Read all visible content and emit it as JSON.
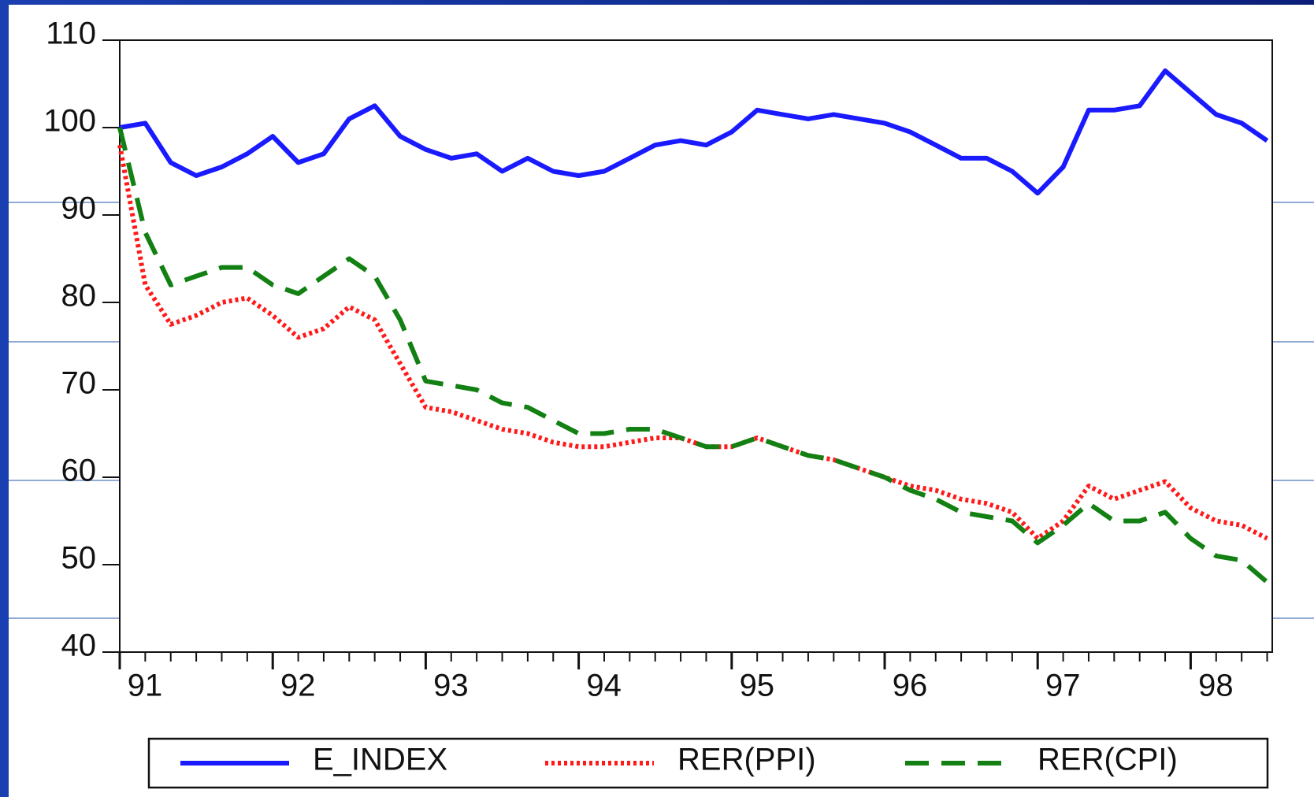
{
  "chart_data": {
    "type": "line",
    "categories": [
      "91",
      null,
      null,
      null,
      null,
      null,
      "92",
      null,
      null,
      null,
      null,
      null,
      "93",
      null,
      null,
      null,
      null,
      null,
      "94",
      null,
      null,
      null,
      null,
      null,
      "95",
      null,
      null,
      null,
      null,
      null,
      "96",
      null,
      null,
      null,
      null,
      null,
      "97",
      null,
      null,
      null,
      null,
      null,
      "98",
      null,
      null,
      null
    ],
    "series": [
      {
        "name": "E_INDEX",
        "color": "#1a1aff",
        "style": "solid",
        "values": [
          100,
          100.5,
          96,
          94.5,
          95.5,
          97,
          99,
          96,
          97,
          101,
          102.5,
          99,
          97.5,
          96.5,
          97,
          95,
          96.5,
          95,
          94.5,
          95,
          96.5,
          98,
          98.5,
          98,
          99.5,
          102,
          101.5,
          101,
          101.5,
          101,
          100.5,
          99.5,
          98,
          96.5,
          96.5,
          95,
          92.5,
          95.5,
          102,
          102,
          102.5,
          106.5,
          104,
          101.5,
          100.5,
          98.5
        ]
      },
      {
        "name": "RER(PPI)",
        "color": "#ff1a1a",
        "style": "dotted",
        "values": [
          98,
          82,
          77.5,
          78.5,
          80,
          80.5,
          78.5,
          76,
          77,
          79.5,
          78,
          73,
          68,
          67.5,
          66.5,
          65.5,
          65,
          64,
          63.5,
          63.5,
          64,
          64.5,
          64.5,
          63.5,
          63.5,
          64.5,
          63.5,
          62.5,
          62,
          61,
          60,
          59,
          58.5,
          57.5,
          57,
          56,
          53,
          55,
          59,
          57.5,
          58.5,
          59.5,
          56.5,
          55,
          54.5,
          53
        ]
      },
      {
        "name": "RER(CPI)",
        "color": "#128012",
        "style": "dashed",
        "values": [
          100,
          88,
          82,
          83,
          84,
          84,
          82,
          81,
          83,
          85,
          83,
          78,
          71,
          70.5,
          70,
          68.5,
          68,
          66.5,
          65,
          65,
          65.5,
          65.5,
          64.5,
          63.5,
          63.5,
          64.5,
          63.5,
          62.5,
          62,
          61,
          60,
          58.5,
          57.5,
          56,
          55.5,
          55,
          52.5,
          54.5,
          57,
          55,
          55,
          56,
          53,
          51,
          50.5,
          48
        ]
      }
    ],
    "ylim": [
      40,
      110
    ],
    "yticks": [
      40,
      50,
      60,
      70,
      80,
      90,
      100,
      110
    ],
    "legend": "bottom"
  }
}
